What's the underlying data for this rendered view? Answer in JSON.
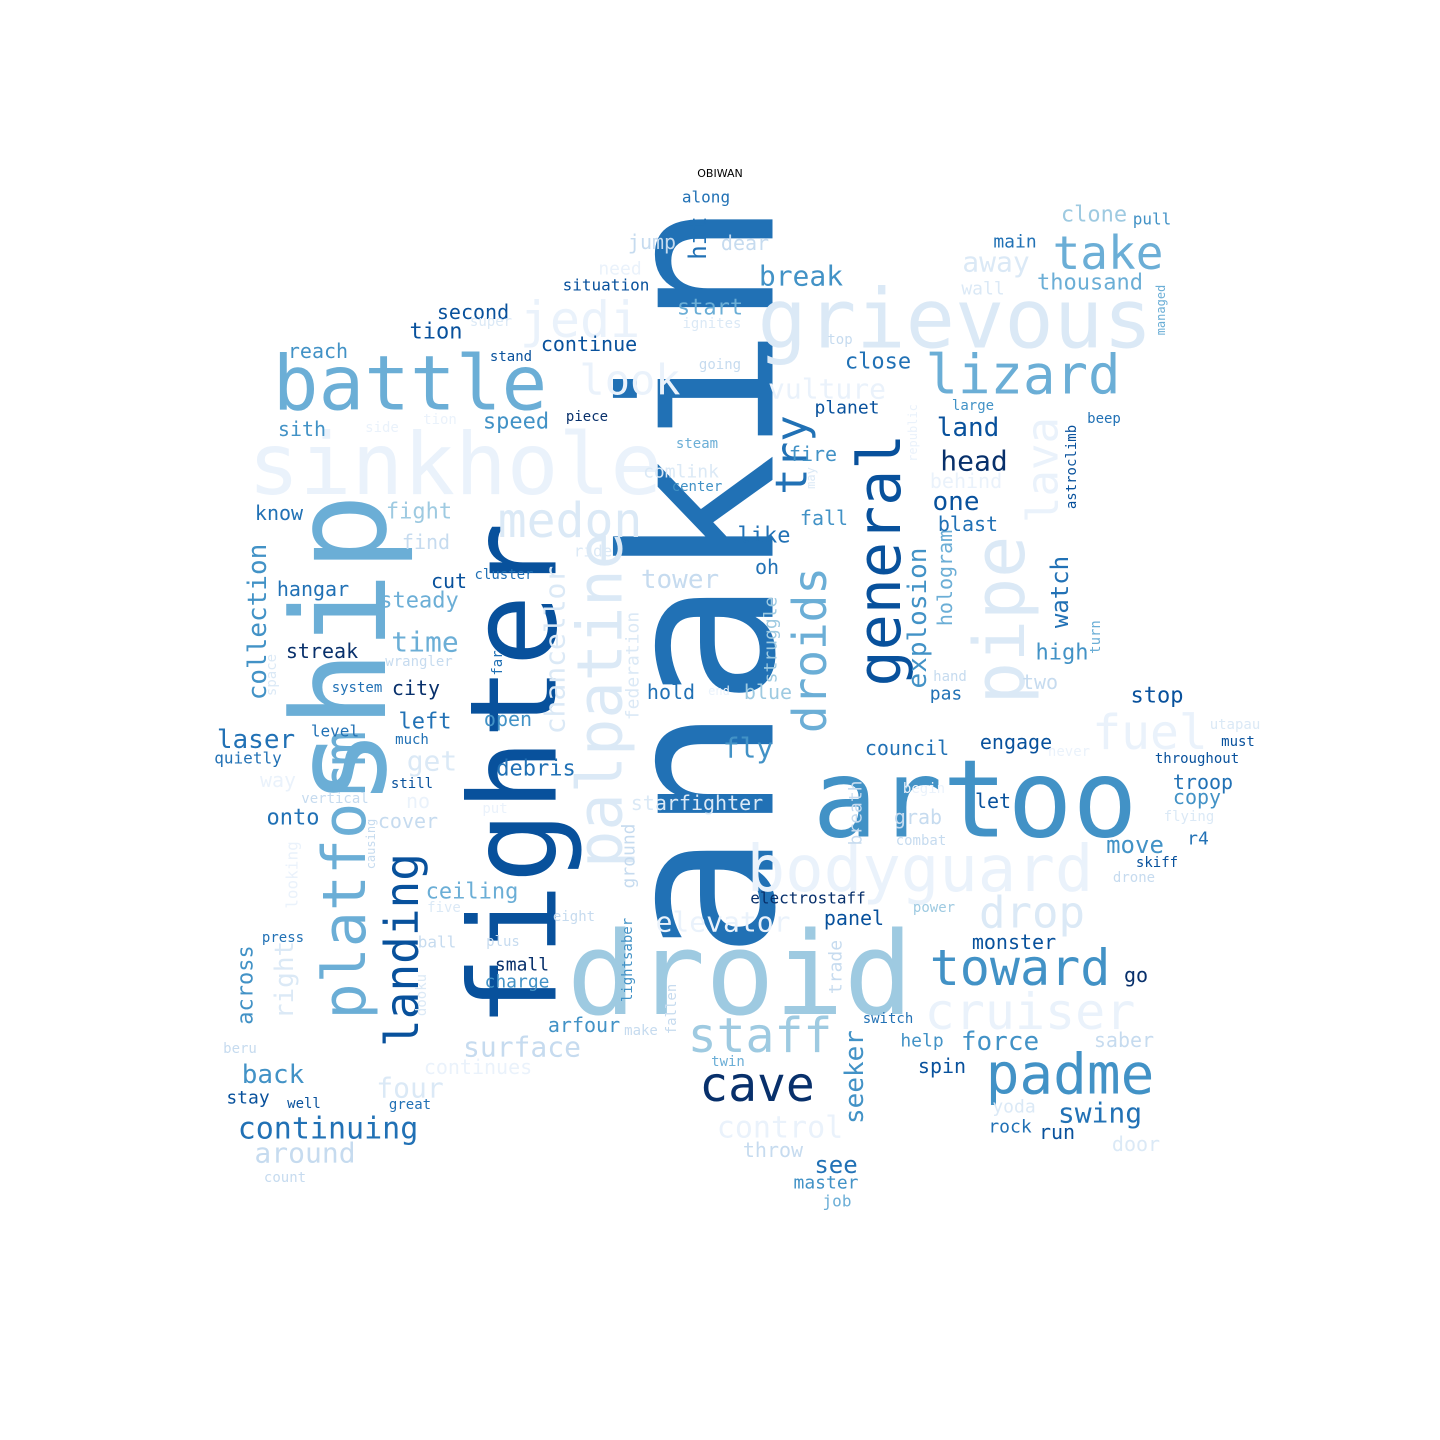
{
  "title": "OBIWAN",
  "colors": {
    "c1": "#eaf2fb",
    "c2": "#dbe9f6",
    "c3": "#c6dbef",
    "c4": "#9ecae1",
    "c5": "#6baed6",
    "c6": "#4292c6",
    "c7": "#2171b5",
    "c8": "#08519c",
    "c9": "#08306b"
  },
  "words": [
    {
      "text": "anakin",
      "color": "c7"
    },
    {
      "text": "droid",
      "color": "c4"
    },
    {
      "text": "artoo",
      "color": "c6"
    },
    {
      "text": "fighter",
      "color": "c8"
    },
    {
      "text": "ship",
      "color": "c5"
    },
    {
      "text": "grievous",
      "color": "c2"
    },
    {
      "text": "sinkhole",
      "color": "c1"
    },
    {
      "text": "battle",
      "color": "c5"
    },
    {
      "text": "platform",
      "color": "c5"
    },
    {
      "text": "general",
      "color": "c8"
    },
    {
      "text": "pipe",
      "color": "c2"
    },
    {
      "text": "palpatine",
      "color": "c2"
    },
    {
      "text": "bodyguard",
      "color": "c1"
    },
    {
      "text": "padme",
      "color": "c6"
    },
    {
      "text": "cave",
      "color": "c9"
    },
    {
      "text": "staff",
      "color": "c4"
    },
    {
      "text": "toward",
      "color": "c6"
    },
    {
      "text": "take",
      "color": "c5"
    },
    {
      "text": "lizard",
      "color": "c5"
    },
    {
      "text": "cruiser",
      "color": "c1"
    },
    {
      "text": "jedi",
      "color": "c1"
    },
    {
      "text": "medon",
      "color": "c2"
    },
    {
      "text": "landing",
      "color": "c8"
    },
    {
      "text": "droids",
      "color": "c5"
    },
    {
      "text": "fuel",
      "color": "c1"
    },
    {
      "text": "drop",
      "color": "c2"
    },
    {
      "text": "lava",
      "color": "c1"
    },
    {
      "text": "try",
      "color": "c7"
    },
    {
      "text": "look",
      "color": "c1"
    },
    {
      "text": "chancellor",
      "color": "c2"
    },
    {
      "text": "continuing",
      "color": "c7"
    },
    {
      "text": "surface",
      "color": "c3"
    },
    {
      "text": "vulture",
      "color": "c1"
    },
    {
      "text": "control",
      "color": "c1"
    },
    {
      "text": "elevator",
      "color": "c1"
    },
    {
      "text": "explosion",
      "color": "c6"
    },
    {
      "text": "collection",
      "color": "c6"
    },
    {
      "text": "break",
      "color": "c6"
    },
    {
      "text": "head",
      "color": "c9"
    },
    {
      "text": "seeker",
      "color": "c6"
    },
    {
      "text": "swing",
      "color": "c7"
    },
    {
      "text": "force",
      "color": "c6"
    },
    {
      "text": "watch",
      "color": "c7"
    },
    {
      "text": "time",
      "color": "c5"
    },
    {
      "text": "around",
      "color": "c3"
    },
    {
      "text": "tower",
      "color": "c3"
    },
    {
      "text": "hit",
      "color": "c7"
    },
    {
      "text": "away",
      "color": "c2"
    },
    {
      "text": "fly",
      "color": "c6"
    },
    {
      "text": "right",
      "color": "c2"
    },
    {
      "text": "four",
      "color": "c2"
    },
    {
      "text": "back",
      "color": "c6"
    },
    {
      "text": "laser",
      "color": "c7"
    },
    {
      "text": "across",
      "color": "c6"
    },
    {
      "text": "land",
      "color": "c8"
    },
    {
      "text": "one",
      "color": "c8"
    },
    {
      "text": "see",
      "color": "c7"
    },
    {
      "text": "move",
      "color": "c6"
    },
    {
      "text": "thousand",
      "color": "c5"
    },
    {
      "text": "clone",
      "color": "c4"
    },
    {
      "text": "hologram",
      "color": "c5"
    },
    {
      "text": "get",
      "color": "c2"
    },
    {
      "text": "speed",
      "color": "c6"
    },
    {
      "text": "ceiling",
      "color": "c5"
    },
    {
      "text": "starfighter",
      "color": "c2"
    },
    {
      "text": "debris",
      "color": "c7"
    },
    {
      "text": "fight",
      "color": "c4"
    },
    {
      "text": "steady",
      "color": "c5"
    },
    {
      "text": "council",
      "color": "c7"
    },
    {
      "text": "engage",
      "color": "c8"
    },
    {
      "text": "stop",
      "color": "c8"
    },
    {
      "text": "high",
      "color": "c6"
    },
    {
      "text": "blast",
      "color": "c7"
    },
    {
      "text": "close",
      "color": "c7"
    },
    {
      "text": "continue",
      "color": "c8"
    },
    {
      "text": "second",
      "color": "c8"
    },
    {
      "text": "tion",
      "color": "c8"
    },
    {
      "text": "start",
      "color": "c5"
    },
    {
      "text": "left",
      "color": "c7"
    },
    {
      "text": "open",
      "color": "c6"
    },
    {
      "text": "hold",
      "color": "c7"
    },
    {
      "text": "blue",
      "color": "c4"
    },
    {
      "text": "city",
      "color": "c9"
    },
    {
      "text": "hangar",
      "color": "c7"
    },
    {
      "text": "know",
      "color": "c7"
    },
    {
      "text": "sith",
      "color": "c6"
    },
    {
      "text": "reach",
      "color": "c6"
    },
    {
      "text": "onto",
      "color": "c7"
    },
    {
      "text": "cover",
      "color": "c3"
    },
    {
      "text": "cut",
      "color": "c8"
    },
    {
      "text": "find",
      "color": "c3"
    },
    {
      "text": "fall",
      "color": "c6"
    },
    {
      "text": "fire",
      "color": "c6"
    },
    {
      "text": "like",
      "color": "c7"
    },
    {
      "text": "oh",
      "color": "c7"
    },
    {
      "text": "streak",
      "color": "c9"
    },
    {
      "text": "small",
      "color": "c9"
    },
    {
      "text": "charge",
      "color": "c6"
    },
    {
      "text": "arfour",
      "color": "c6"
    },
    {
      "text": "panel",
      "color": "c8"
    },
    {
      "text": "monster",
      "color": "c8"
    },
    {
      "text": "grab",
      "color": "c3"
    },
    {
      "text": "let",
      "color": "c8"
    },
    {
      "text": "copy",
      "color": "c6"
    },
    {
      "text": "troop",
      "color": "c7"
    },
    {
      "text": "two",
      "color": "c3"
    },
    {
      "text": "pas",
      "color": "c7"
    },
    {
      "text": "main",
      "color": "c7"
    },
    {
      "text": "pull",
      "color": "c6"
    },
    {
      "text": "dear",
      "color": "c3"
    },
    {
      "text": "jump",
      "color": "c3"
    },
    {
      "text": "behind",
      "color": "c1"
    },
    {
      "text": "planet",
      "color": "c8"
    },
    {
      "text": "struggle",
      "color": "c4"
    },
    {
      "text": "federation",
      "color": "c2"
    },
    {
      "text": "ground",
      "color": "c3"
    },
    {
      "text": "trade",
      "color": "c3"
    },
    {
      "text": "breath",
      "color": "c3"
    },
    {
      "text": "help",
      "color": "c6"
    },
    {
      "text": "spin",
      "color": "c8"
    },
    {
      "text": "rock",
      "color": "c7"
    },
    {
      "text": "run",
      "color": "c8"
    },
    {
      "text": "door",
      "color": "c2"
    },
    {
      "text": "saber",
      "color": "c3"
    },
    {
      "text": "go",
      "color": "c9"
    },
    {
      "text": "yoda",
      "color": "c2"
    },
    {
      "text": "throw",
      "color": "c3"
    },
    {
      "text": "master",
      "color": "c6"
    },
    {
      "text": "job",
      "color": "c5"
    },
    {
      "text": "continues",
      "color": "c1"
    },
    {
      "text": "stay",
      "color": "c8"
    },
    {
      "text": "well",
      "color": "c8"
    },
    {
      "text": "great",
      "color": "c7"
    },
    {
      "text": "count",
      "color": "c3"
    },
    {
      "text": "beru",
      "color": "c3"
    },
    {
      "text": "press",
      "color": "c7"
    },
    {
      "text": "quietly",
      "color": "c7"
    },
    {
      "text": "level",
      "color": "c7"
    },
    {
      "text": "much",
      "color": "c7"
    },
    {
      "text": "still",
      "color": "c8"
    },
    {
      "text": "system",
      "color": "c7"
    },
    {
      "text": "wrangler",
      "color": "c3"
    },
    {
      "text": "space",
      "color": "c2"
    },
    {
      "text": "vertical",
      "color": "c3"
    },
    {
      "text": "way",
      "color": "c1"
    },
    {
      "text": "no",
      "color": "c1"
    },
    {
      "text": "put",
      "color": "c1"
    },
    {
      "text": "causing",
      "color": "c3"
    },
    {
      "text": "looking",
      "color": "c1"
    },
    {
      "text": "five",
      "color": "c2"
    },
    {
      "text": "ball",
      "color": "c3"
    },
    {
      "text": "plus",
      "color": "c3"
    },
    {
      "text": "dooku",
      "color": "c2"
    },
    {
      "text": "eight",
      "color": "c3"
    },
    {
      "text": "lightsaber",
      "color": "c6"
    },
    {
      "text": "make",
      "color": "c3"
    },
    {
      "text": "fallen",
      "color": "c3"
    },
    {
      "text": "twin",
      "color": "c5"
    },
    {
      "text": "switch",
      "color": "c7"
    },
    {
      "text": "electrostaff",
      "color": "c9"
    },
    {
      "text": "power",
      "color": "c4"
    },
    {
      "text": "combat",
      "color": "c3"
    },
    {
      "text": "begin",
      "color": "c1"
    },
    {
      "text": "hand",
      "color": "c3"
    },
    {
      "text": "end",
      "color": "c1"
    },
    {
      "text": "far",
      "color": "c7"
    },
    {
      "text": "ride",
      "color": "c2"
    },
    {
      "text": "cluster",
      "color": "c7"
    },
    {
      "text": "center",
      "color": "c6"
    },
    {
      "text": "comlink",
      "color": "c2"
    },
    {
      "text": "steam",
      "color": "c5"
    },
    {
      "text": "piece",
      "color": "c9"
    },
    {
      "text": "going",
      "color": "c3"
    },
    {
      "text": "stand",
      "color": "c8"
    },
    {
      "text": "super",
      "color": "c2"
    },
    {
      "text": "ignites",
      "color": "c2"
    },
    {
      "text": "situation",
      "color": "c8"
    },
    {
      "text": "need",
      "color": "c1"
    },
    {
      "text": "along",
      "color": "c7"
    },
    {
      "text": "top",
      "color": "c3"
    },
    {
      "text": "large",
      "color": "c6"
    },
    {
      "text": "side",
      "color": "c1"
    },
    {
      "text": "tion",
      "color": "c1"
    },
    {
      "text": "republic",
      "color": "c1"
    },
    {
      "text": "may",
      "color": "c2"
    },
    {
      "text": "wall",
      "color": "c2"
    },
    {
      "text": "managed",
      "color": "c5"
    },
    {
      "text": "beep",
      "color": "c7"
    },
    {
      "text": "astroclimb",
      "color": "c8"
    },
    {
      "text": "turn",
      "color": "c5"
    },
    {
      "text": "utapau",
      "color": "c2"
    },
    {
      "text": "must",
      "color": "c8"
    },
    {
      "text": "throughout",
      "color": "c8"
    },
    {
      "text": "never",
      "color": "c1"
    },
    {
      "text": "flying",
      "color": "c2"
    },
    {
      "text": "r4",
      "color": "c7"
    },
    {
      "text": "skiff",
      "color": "c8"
    },
    {
      "text": "drone",
      "color": "c3"
    }
  ]
}
